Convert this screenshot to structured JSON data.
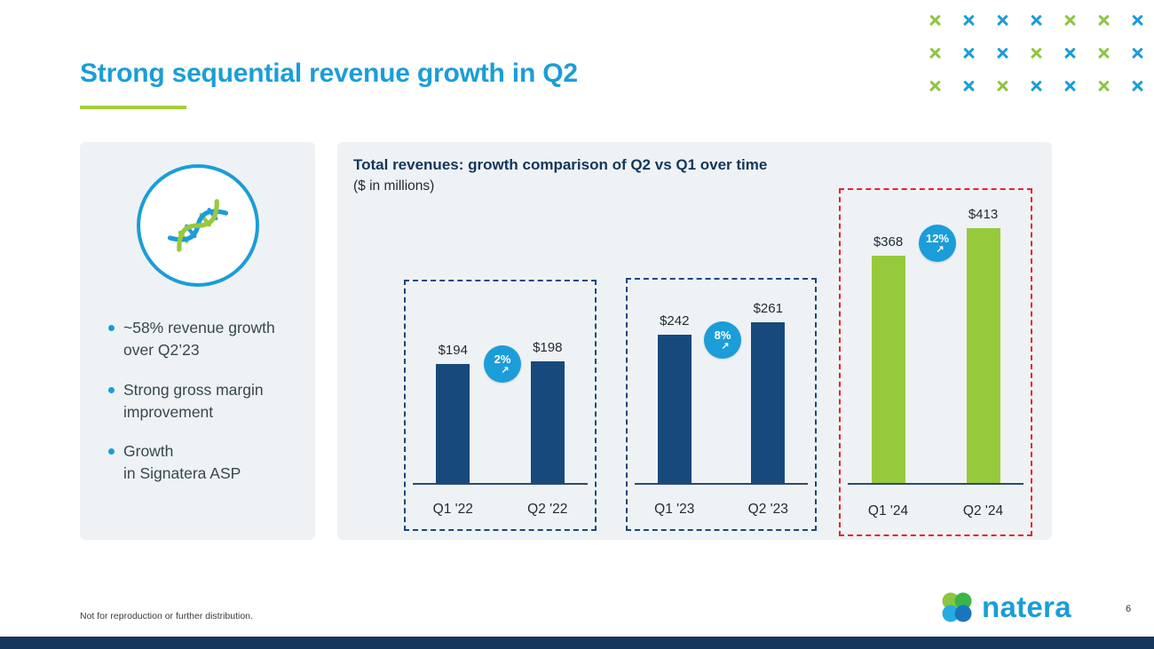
{
  "slide": {
    "title": "Strong sequential revenue growth in Q2",
    "footnote": "Not for reproduction or further distribution.",
    "page_number": "6"
  },
  "left_panel": {
    "icon": "dna-icon",
    "bullets": [
      "~58% revenue growth over Q2’23",
      "Strong gross margin improvement",
      "Growth\nin Signatera ASP"
    ]
  },
  "chart": {
    "title": "Total revenues: growth comparison of Q2 vs Q1 over time",
    "subtitle": "($ in millions)"
  },
  "chart_data": {
    "type": "bar",
    "title": "Total revenues: growth comparison of Q2 vs Q1 over time",
    "subtitle": "($ in millions)",
    "categories": [
      "Q1 '22",
      "Q2 '22",
      "Q1 '23",
      "Q2 '23",
      "Q1 '24",
      "Q2 '24"
    ],
    "values": [
      194,
      198,
      242,
      261,
      368,
      413
    ],
    "value_labels": [
      "$194",
      "$198",
      "$242",
      "$261",
      "$368",
      "$413"
    ],
    "bar_colors": [
      "#17497D",
      "#17497D",
      "#17497D",
      "#17497D",
      "#97C93D",
      "#97C93D"
    ],
    "groups": [
      {
        "categories": [
          "Q1 '22",
          "Q2 '22"
        ],
        "growth_label": "2%",
        "box_color": "#17497D"
      },
      {
        "categories": [
          "Q1 '23",
          "Q2 '23"
        ],
        "growth_label": "8%",
        "box_color": "#17497D"
      },
      {
        "categories": [
          "Q1 '24",
          "Q2 '24"
        ],
        "growth_label": "12%",
        "box_color": "#E8222A"
      }
    ],
    "growth_arrow": "↗",
    "ylim": [
      0,
      450
    ],
    "grid": false,
    "legend": false
  },
  "branding": {
    "logo_text": "natera"
  },
  "decor": {
    "x_pattern_rows": [
      [
        "g",
        "b",
        "b",
        "b",
        "g",
        "g",
        "b"
      ],
      [
        "g",
        "b",
        "b",
        "g",
        "b",
        "g",
        "b"
      ],
      [
        "g",
        "b",
        "g",
        "b",
        "b",
        "g",
        "b"
      ]
    ]
  },
  "colors": {
    "accent_blue": "#1B9DD9",
    "accent_green": "#A6CE39",
    "x_green": "#8DC63F",
    "x_blue": "#1B9DD9",
    "bar_navy": "#17497D",
    "bar_green": "#97C93D",
    "box_red": "#E8222A",
    "footer_navy": "#16365C",
    "panel_gray": "#EFF2F4"
  }
}
